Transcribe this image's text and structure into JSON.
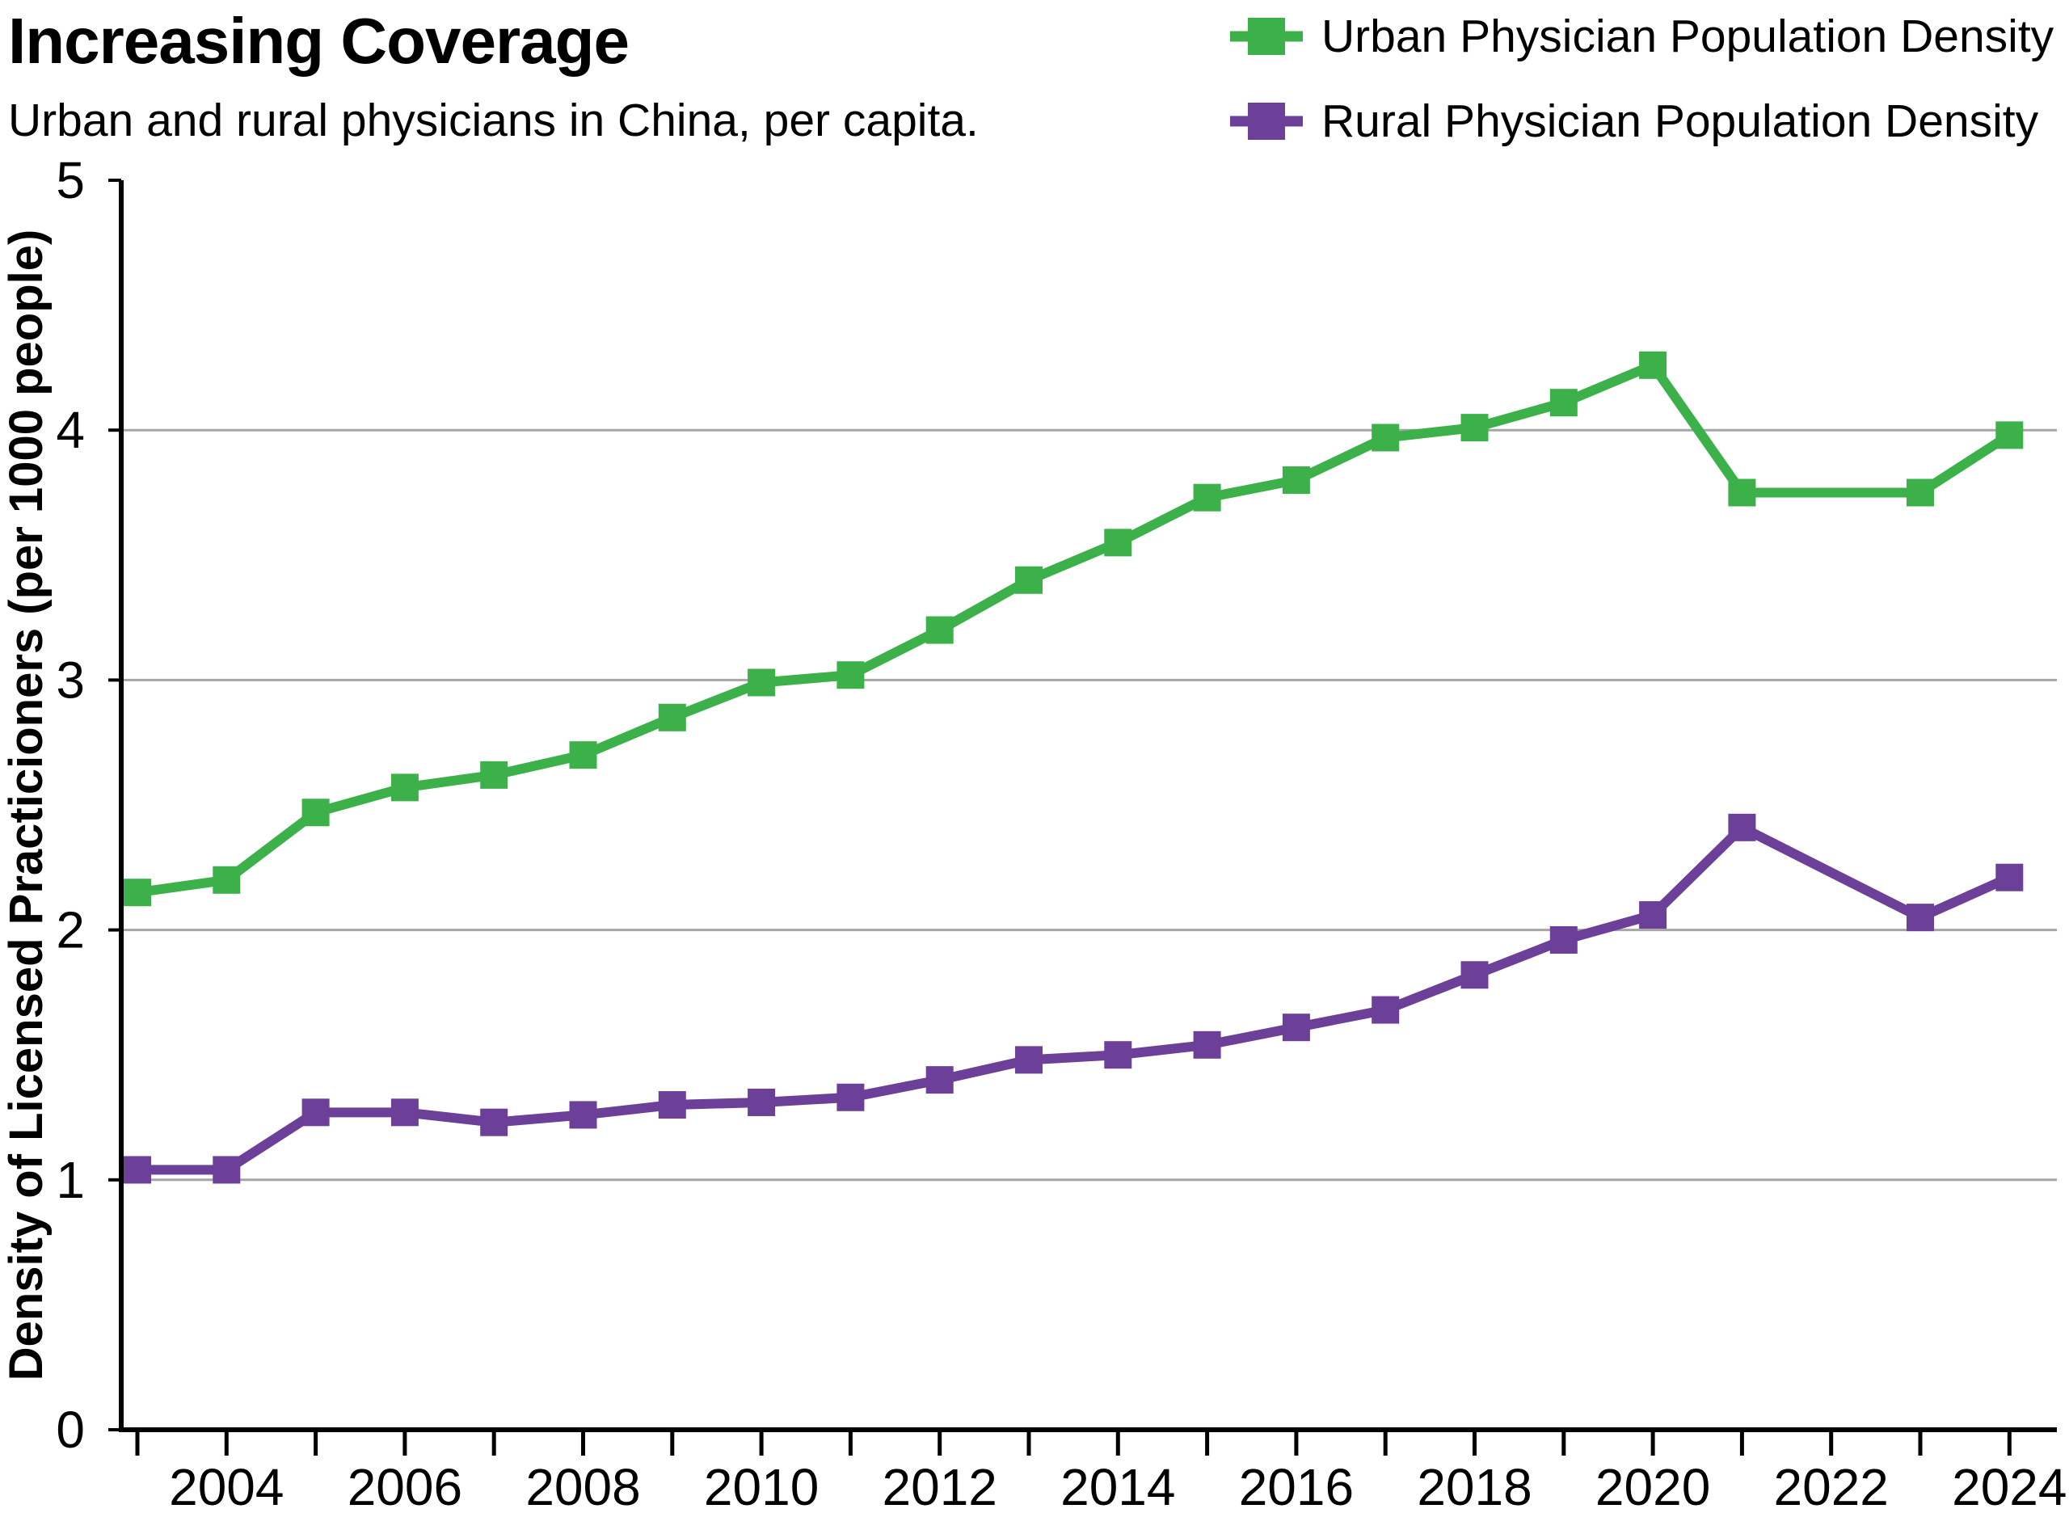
{
  "header": {
    "title": "Increasing Coverage",
    "subtitle": "Urban and rural physicians in China, per capita."
  },
  "legend": {
    "items": [
      {
        "label": "Urban Physician Population Density",
        "color": "#3cb14a"
      },
      {
        "label": "Rural Physician Population Density",
        "color": "#6c3f98"
      }
    ]
  },
  "colors": {
    "urban": "#3cb14a",
    "rural": "#6c3f98",
    "gridline": "#a6a6a6",
    "axis": "#000000",
    "background": "#ffffff",
    "text": "#000000"
  },
  "chart_data": {
    "type": "line",
    "title": "Increasing Coverage",
    "subtitle": "Urban and rural physicians in China, per capita.",
    "xlabel": "",
    "ylabel": "Density of Licensed Practicioners (per 1000 people)",
    "ylim": [
      0,
      5
    ],
    "yticks": [
      0,
      1,
      2,
      3,
      4,
      5
    ],
    "grid": "horizontal-only",
    "legend_position": "top-right",
    "marker": "square",
    "x": [
      2003,
      2004,
      2005,
      2006,
      2007,
      2008,
      2009,
      2010,
      2011,
      2012,
      2013,
      2014,
      2015,
      2016,
      2017,
      2018,
      2019,
      2020,
      2021,
      2022,
      2023,
      2024
    ],
    "xtick_label_years": [
      2004,
      2006,
      2008,
      2010,
      2012,
      2014,
      2016,
      2018,
      2020,
      2022,
      2024
    ],
    "series": [
      {
        "name": "Urban Physician Population Density",
        "color": "#3cb14a",
        "values": [
          2.15,
          2.2,
          2.47,
          2.57,
          2.62,
          2.7,
          2.85,
          2.99,
          3.02,
          3.2,
          3.4,
          3.55,
          3.73,
          3.8,
          3.97,
          4.01,
          4.11,
          4.26,
          3.75,
          null,
          3.75,
          3.98
        ]
      },
      {
        "name": "Rural Physician Population Density",
        "color": "#6c3f98",
        "values": [
          1.04,
          1.04,
          1.27,
          1.27,
          1.23,
          1.26,
          1.3,
          1.31,
          1.33,
          1.4,
          1.48,
          1.5,
          1.54,
          1.61,
          1.68,
          1.82,
          1.96,
          2.06,
          2.41,
          null,
          2.05,
          2.21
        ]
      }
    ]
  }
}
